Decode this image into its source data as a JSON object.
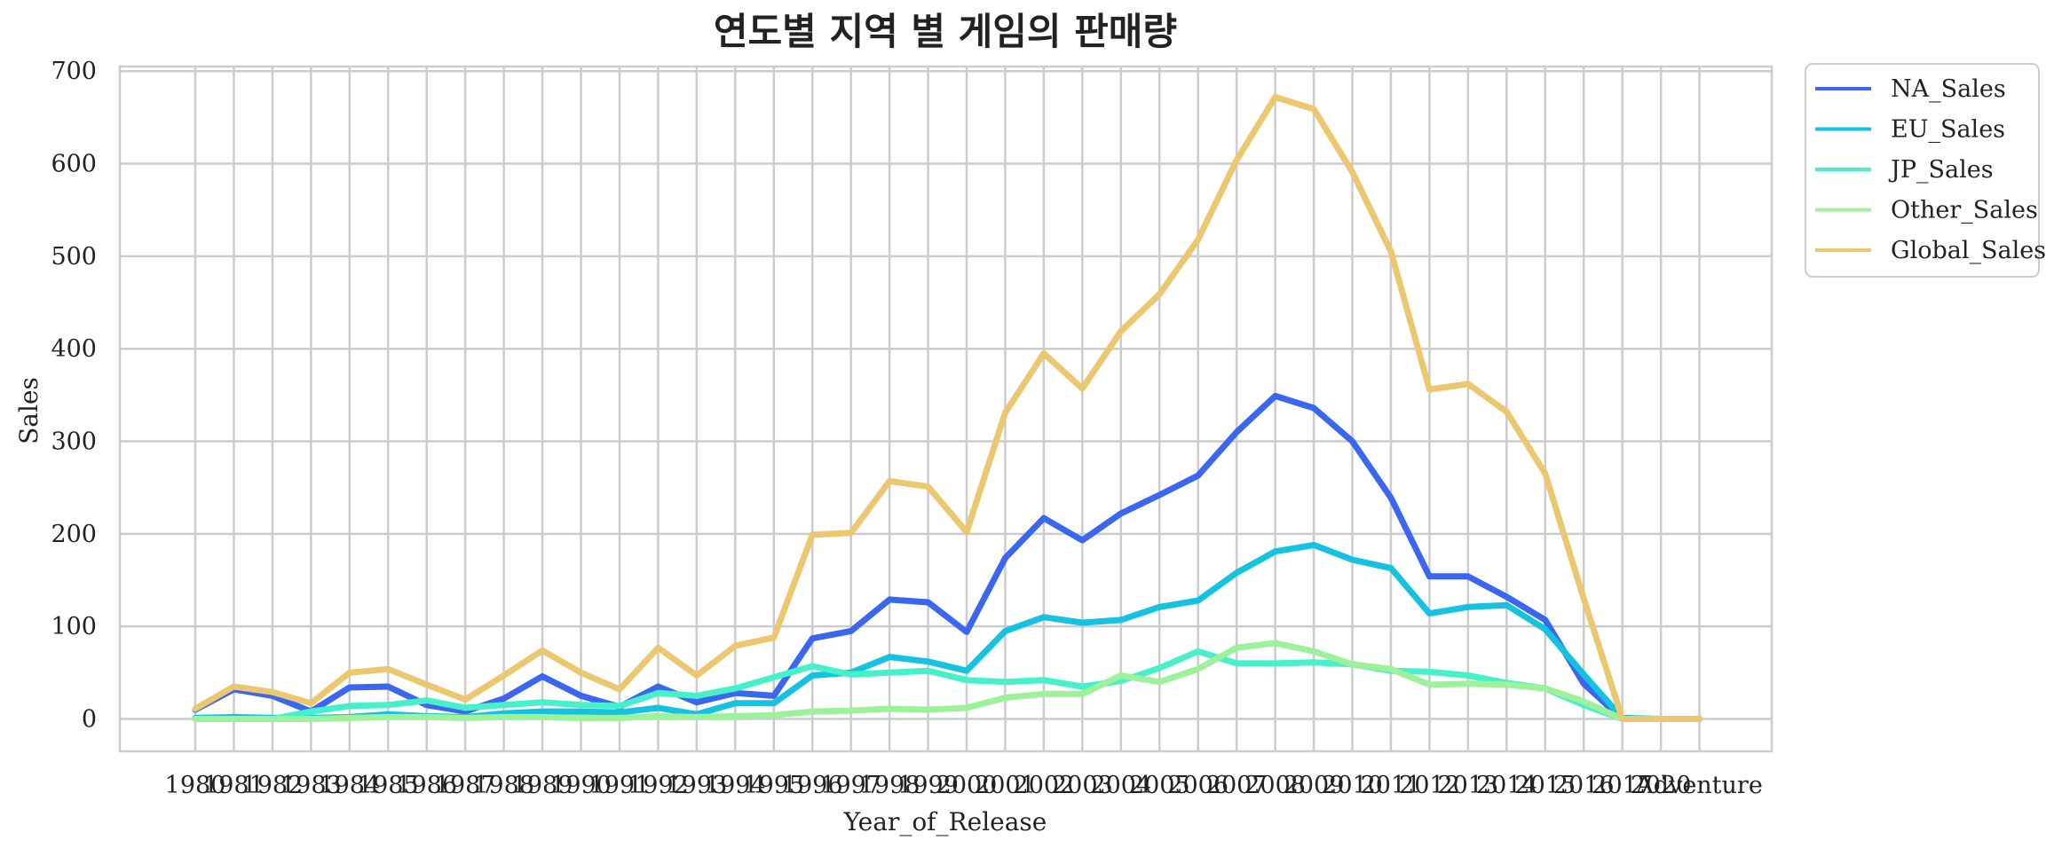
{
  "chart_data": {
    "type": "line",
    "title": "연도별 지역 별 게임의 판매량",
    "xlabel": "Year_of_Release",
    "ylabel": "Sales",
    "ylim": [
      -35,
      705
    ],
    "yticks": [
      0,
      100,
      200,
      300,
      400,
      500,
      600,
      700
    ],
    "grid": true,
    "legend_position": "outside-top-right",
    "categories": [
      "1980",
      "1981",
      "1982",
      "1983",
      "1984",
      "1985",
      "1986",
      "1987",
      "1988",
      "1989",
      "1990",
      "1991",
      "1992",
      "1993",
      "1994",
      "1995",
      "1996",
      "1997",
      "1998",
      "1999",
      "2000",
      "2001",
      "2002",
      "2003",
      "2004",
      "2005",
      "2006",
      "2007",
      "2008",
      "2009",
      "2010",
      "2011",
      "2012",
      "2013",
      "2014",
      "2015",
      "2016",
      "2017",
      "2020",
      "Adventure"
    ],
    "series": [
      {
        "name": "NA_Sales",
        "color": "#3a66f0",
        "values": [
          10,
          32,
          25,
          8,
          34,
          35,
          15,
          8,
          22,
          46,
          25,
          13,
          35,
          18,
          28,
          25,
          87,
          95,
          129,
          126,
          94,
          174,
          217,
          193,
          222,
          242,
          263,
          310,
          349,
          336,
          300,
          239,
          154,
          154,
          132,
          107,
          38,
          0,
          0,
          0
        ]
      },
      {
        "name": "EU_Sales",
        "color": "#15c2e0",
        "values": [
          1,
          2,
          1,
          1,
          2,
          5,
          3,
          2,
          6,
          8,
          8,
          7,
          12,
          5,
          17,
          17,
          47,
          50,
          67,
          62,
          52,
          95,
          110,
          104,
          107,
          121,
          128,
          158,
          181,
          188,
          172,
          163,
          114,
          121,
          123,
          97,
          48,
          1,
          0,
          0
        ]
      },
      {
        "name": "JP_Sales",
        "color": "#46f0c8",
        "values": [
          0,
          0,
          0,
          8,
          14,
          15,
          20,
          12,
          15,
          18,
          15,
          14,
          28,
          25,
          33,
          45,
          57,
          48,
          50,
          52,
          42,
          40,
          42,
          35,
          41,
          55,
          73,
          60,
          60,
          61,
          59,
          52,
          51,
          47,
          39,
          33,
          15,
          0,
          0,
          0
        ]
      },
      {
        "name": "Other_Sales",
        "color": "#9cf19a",
        "values": [
          0,
          0,
          0,
          0,
          1,
          2,
          2,
          1,
          2,
          2,
          1,
          1,
          3,
          2,
          3,
          4,
          8,
          9,
          11,
          10,
          12,
          23,
          27,
          27,
          47,
          40,
          54,
          77,
          82,
          73,
          59,
          54,
          37,
          38,
          37,
          33,
          19,
          0,
          0,
          0
        ]
      },
      {
        "name": "Global_Sales",
        "color": "#ebc870",
        "values": [
          11,
          35,
          29,
          17,
          50,
          54,
          37,
          21,
          47,
          74,
          50,
          32,
          77,
          47,
          79,
          88,
          199,
          201,
          257,
          251,
          202,
          331,
          395,
          357,
          419,
          459,
          518,
          604,
          672,
          659,
          591,
          505,
          356,
          362,
          332,
          265,
          130,
          0,
          0,
          0
        ]
      }
    ]
  }
}
